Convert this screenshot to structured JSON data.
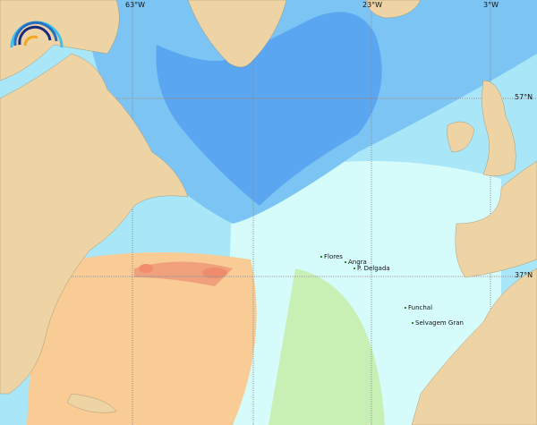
{
  "map": {
    "longitude_labels": [
      "63°W",
      "23°W",
      "3°W"
    ],
    "latitude_labels": [
      "57°N",
      "37°N"
    ],
    "places": [
      "Flores",
      "Angra",
      "P. Delgada",
      "Funchal",
      "Selvagem Gran"
    ],
    "colors": {
      "land": "#eed4a4",
      "deep_blue": "#5aa6f0",
      "mid_blue": "#7cc4f4",
      "light_blue": "#a8e6f8",
      "pale_cyan": "#d6fbfb",
      "green": "#c8f0b4",
      "orange": "#f8cc94",
      "red": "#f08c6c",
      "grid": "#888888"
    }
  },
  "logo": {
    "icon": "rainbow-arcs-logo"
  }
}
